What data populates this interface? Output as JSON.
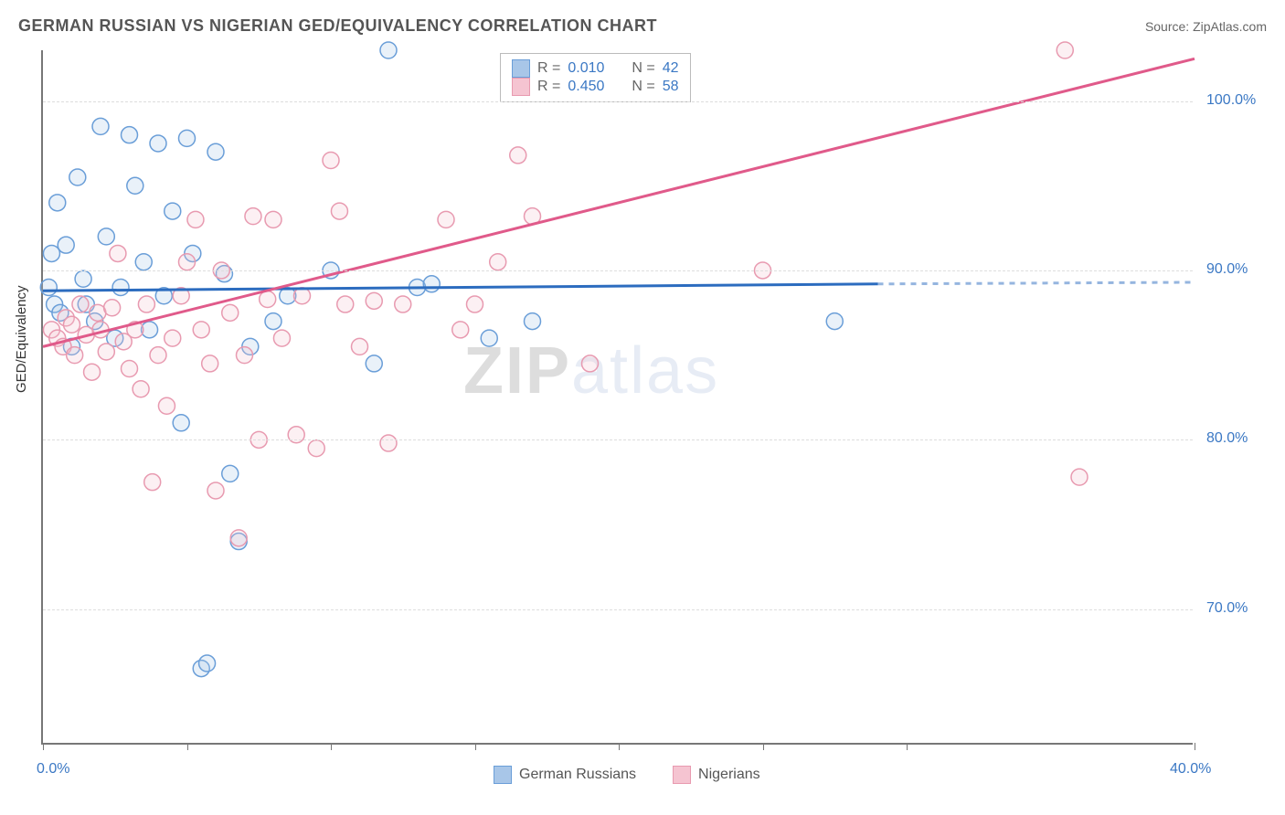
{
  "title": "GERMAN RUSSIAN VS NIGERIAN GED/EQUIVALENCY CORRELATION CHART",
  "source": "Source: ZipAtlas.com",
  "ylabel": "GED/Equivalency",
  "watermark_a": "ZIP",
  "watermark_b": "atlas",
  "chart": {
    "type": "scatter",
    "xlim": [
      0,
      40
    ],
    "ylim": [
      62,
      103
    ],
    "xticks": [
      0,
      5,
      10,
      15,
      20,
      25,
      30,
      40
    ],
    "xticklabels_shown": {
      "0": "0.0%",
      "40": "40.0%"
    },
    "yticks": [
      70,
      80,
      90,
      100
    ],
    "yticklabels": {
      "70": "70.0%",
      "80": "80.0%",
      "90": "90.0%",
      "100": "100.0%"
    },
    "grid_color": "#dddddd",
    "axis_color": "#777777",
    "background_color": "#ffffff",
    "marker_radius": 9,
    "marker_stroke_width": 1.5,
    "marker_fill_opacity": 0.25,
    "series": [
      {
        "name": "German Russians",
        "color_stroke": "#6a9ed8",
        "color_fill": "#a8c6e8",
        "points": [
          [
            0.2,
            89
          ],
          [
            0.3,
            91
          ],
          [
            0.4,
            88
          ],
          [
            0.5,
            94
          ],
          [
            0.6,
            87.5
          ],
          [
            0.8,
            91.5
          ],
          [
            1.0,
            85.5
          ],
          [
            1.2,
            95.5
          ],
          [
            1.4,
            89.5
          ],
          [
            1.5,
            88.0
          ],
          [
            1.8,
            87.0
          ],
          [
            2.0,
            98.5
          ],
          [
            2.2,
            92.0
          ],
          [
            2.5,
            86.0
          ],
          [
            2.7,
            89.0
          ],
          [
            3.0,
            98.0
          ],
          [
            3.2,
            95.0
          ],
          [
            3.5,
            90.5
          ],
          [
            3.7,
            86.5
          ],
          [
            4.0,
            97.5
          ],
          [
            4.2,
            88.5
          ],
          [
            4.5,
            93.5
          ],
          [
            4.8,
            81.0
          ],
          [
            5.0,
            97.8
          ],
          [
            5.2,
            91.0
          ],
          [
            5.5,
            66.5
          ],
          [
            5.7,
            66.8
          ],
          [
            6.0,
            97.0
          ],
          [
            6.3,
            89.8
          ],
          [
            6.5,
            78.0
          ],
          [
            6.8,
            74.0
          ],
          [
            7.2,
            85.5
          ],
          [
            8.0,
            87.0
          ],
          [
            8.5,
            88.5
          ],
          [
            10.0,
            90.0
          ],
          [
            11.5,
            84.5
          ],
          [
            12.0,
            103.0
          ],
          [
            13.0,
            89.0
          ],
          [
            13.5,
            89.2
          ],
          [
            15.5,
            86.0
          ],
          [
            17.0,
            87.0
          ],
          [
            27.5,
            87.0
          ]
        ],
        "trend": {
          "y_start": 88.8,
          "y_end_solid": 89.2,
          "x_end_solid": 29,
          "y_end_dash": 89.3,
          "color": "#2c6cbf",
          "width": 3
        }
      },
      {
        "name": "Nigerians",
        "color_stroke": "#e89ab0",
        "color_fill": "#f5c4d1",
        "points": [
          [
            0.3,
            86.5
          ],
          [
            0.5,
            86.0
          ],
          [
            0.7,
            85.5
          ],
          [
            0.8,
            87.2
          ],
          [
            1.0,
            86.8
          ],
          [
            1.1,
            85.0
          ],
          [
            1.3,
            88.0
          ],
          [
            1.5,
            86.2
          ],
          [
            1.7,
            84.0
          ],
          [
            1.9,
            87.5
          ],
          [
            2.0,
            86.5
          ],
          [
            2.2,
            85.2
          ],
          [
            2.4,
            87.8
          ],
          [
            2.6,
            91.0
          ],
          [
            2.8,
            85.8
          ],
          [
            3.0,
            84.2
          ],
          [
            3.2,
            86.5
          ],
          [
            3.4,
            83.0
          ],
          [
            3.6,
            88.0
          ],
          [
            3.8,
            77.5
          ],
          [
            4.0,
            85.0
          ],
          [
            4.3,
            82.0
          ],
          [
            4.5,
            86.0
          ],
          [
            4.8,
            88.5
          ],
          [
            5.0,
            90.5
          ],
          [
            5.3,
            93.0
          ],
          [
            5.5,
            86.5
          ],
          [
            5.8,
            84.5
          ],
          [
            6.0,
            77.0
          ],
          [
            6.2,
            90.0
          ],
          [
            6.5,
            87.5
          ],
          [
            6.8,
            74.2
          ],
          [
            7.0,
            85.0
          ],
          [
            7.3,
            93.2
          ],
          [
            7.5,
            80.0
          ],
          [
            7.8,
            88.3
          ],
          [
            8.0,
            93.0
          ],
          [
            8.3,
            86.0
          ],
          [
            8.8,
            80.3
          ],
          [
            9.0,
            88.5
          ],
          [
            9.5,
            79.5
          ],
          [
            10.0,
            96.5
          ],
          [
            10.3,
            93.5
          ],
          [
            10.5,
            88.0
          ],
          [
            11.0,
            85.5
          ],
          [
            11.5,
            88.2
          ],
          [
            12.0,
            79.8
          ],
          [
            12.5,
            88.0
          ],
          [
            14.0,
            93.0
          ],
          [
            14.5,
            86.5
          ],
          [
            15.0,
            88.0
          ],
          [
            15.8,
            90.5
          ],
          [
            16.5,
            96.8
          ],
          [
            17.0,
            93.2
          ],
          [
            19.0,
            84.5
          ],
          [
            25.0,
            90.0
          ],
          [
            35.5,
            103.0
          ],
          [
            36.0,
            77.8
          ]
        ],
        "trend": {
          "y_start": 85.5,
          "y_end_solid": 102.5,
          "x_end_solid": 40,
          "y_end_dash": 102.5,
          "color": "#e05a8a",
          "width": 3
        }
      }
    ],
    "legend_top": {
      "rows": [
        {
          "swatch_fill": "#a8c6e8",
          "swatch_stroke": "#6a9ed8",
          "r_label": "R =",
          "r_val": "0.010",
          "n_label": "N =",
          "n_val": "42"
        },
        {
          "swatch_fill": "#f5c4d1",
          "swatch_stroke": "#e89ab0",
          "r_label": "R =",
          "r_val": "0.450",
          "n_label": "N =",
          "n_val": "58"
        }
      ]
    },
    "legend_bottom": [
      {
        "swatch_fill": "#a8c6e8",
        "swatch_stroke": "#6a9ed8",
        "label": "German Russians"
      },
      {
        "swatch_fill": "#f5c4d1",
        "swatch_stroke": "#e89ab0",
        "label": "Nigerians"
      }
    ]
  }
}
